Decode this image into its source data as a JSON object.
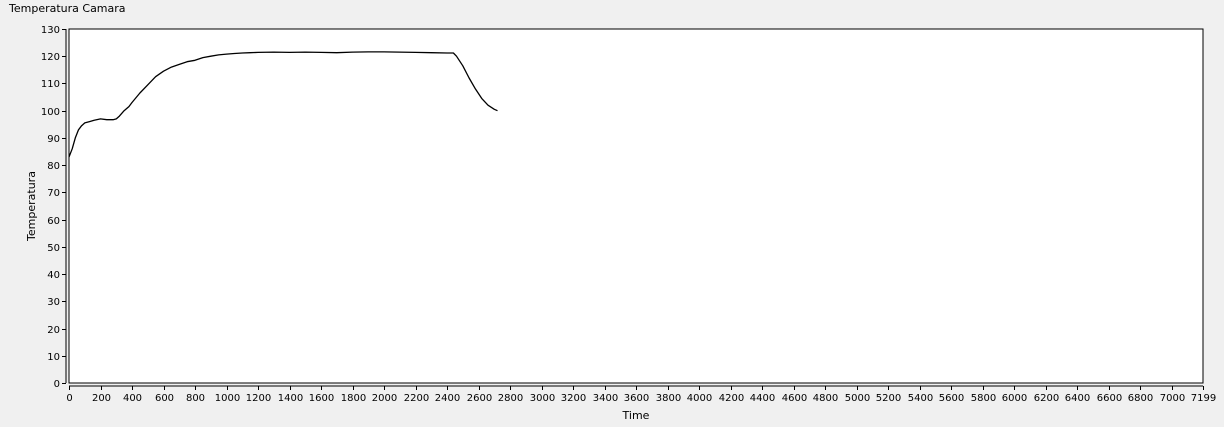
{
  "graph": {
    "title": "Temperatura Camara"
  },
  "chart_data": {
    "type": "line",
    "title": "Temperatura Camara",
    "xlabel": "Time",
    "ylabel": "Temperatura",
    "xlim": [
      0,
      7199
    ],
    "ylim": [
      0,
      130
    ],
    "x_ticks": [
      0,
      200,
      400,
      600,
      800,
      1000,
      1200,
      1400,
      1600,
      1800,
      2000,
      2200,
      2400,
      2600,
      2800,
      3000,
      3200,
      3400,
      3600,
      3800,
      4000,
      4200,
      4400,
      4600,
      4800,
      5000,
      5200,
      5400,
      5600,
      5800,
      6000,
      6200,
      6400,
      6600,
      6800,
      7000,
      7199
    ],
    "y_ticks": [
      0,
      10,
      20,
      30,
      40,
      50,
      60,
      70,
      80,
      90,
      100,
      110,
      120,
      130
    ],
    "grid": false,
    "legend": "none",
    "colors": {
      "plot_bg": "#ffffff",
      "line": "#000000",
      "frame": "#000000",
      "axis": "#000000",
      "tick_text": "#000000"
    },
    "series": [
      {
        "x": [
          0,
          20,
          40,
          60,
          80,
          100,
          130,
          160,
          200,
          240,
          280,
          300,
          320,
          350,
          380,
          400,
          450,
          500,
          550,
          600,
          650,
          700,
          750,
          800,
          850,
          900,
          950,
          1000,
          1050,
          1100,
          1150,
          1200,
          1300,
          1400,
          1500,
          1600,
          1700,
          1800,
          1900,
          2000,
          2100,
          2200,
          2300,
          2400,
          2440,
          2460,
          2500,
          2540,
          2580,
          2620,
          2660,
          2700,
          2720
        ],
        "y": [
          83,
          86,
          90,
          93,
          94.5,
          95.5,
          96,
          96.5,
          97,
          96.7,
          96.7,
          97,
          98,
          100,
          101.5,
          103,
          106.5,
          109.5,
          112.5,
          114.5,
          116,
          117,
          118,
          118.5,
          119.5,
          120,
          120.5,
          120.8,
          121,
          121.2,
          121.3,
          121.4,
          121.5,
          121.4,
          121.5,
          121.4,
          121.3,
          121.5,
          121.6,
          121.6,
          121.5,
          121.4,
          121.3,
          121.2,
          121.2,
          120,
          116.5,
          112,
          108,
          104.5,
          102,
          100.5,
          100
        ]
      }
    ]
  }
}
